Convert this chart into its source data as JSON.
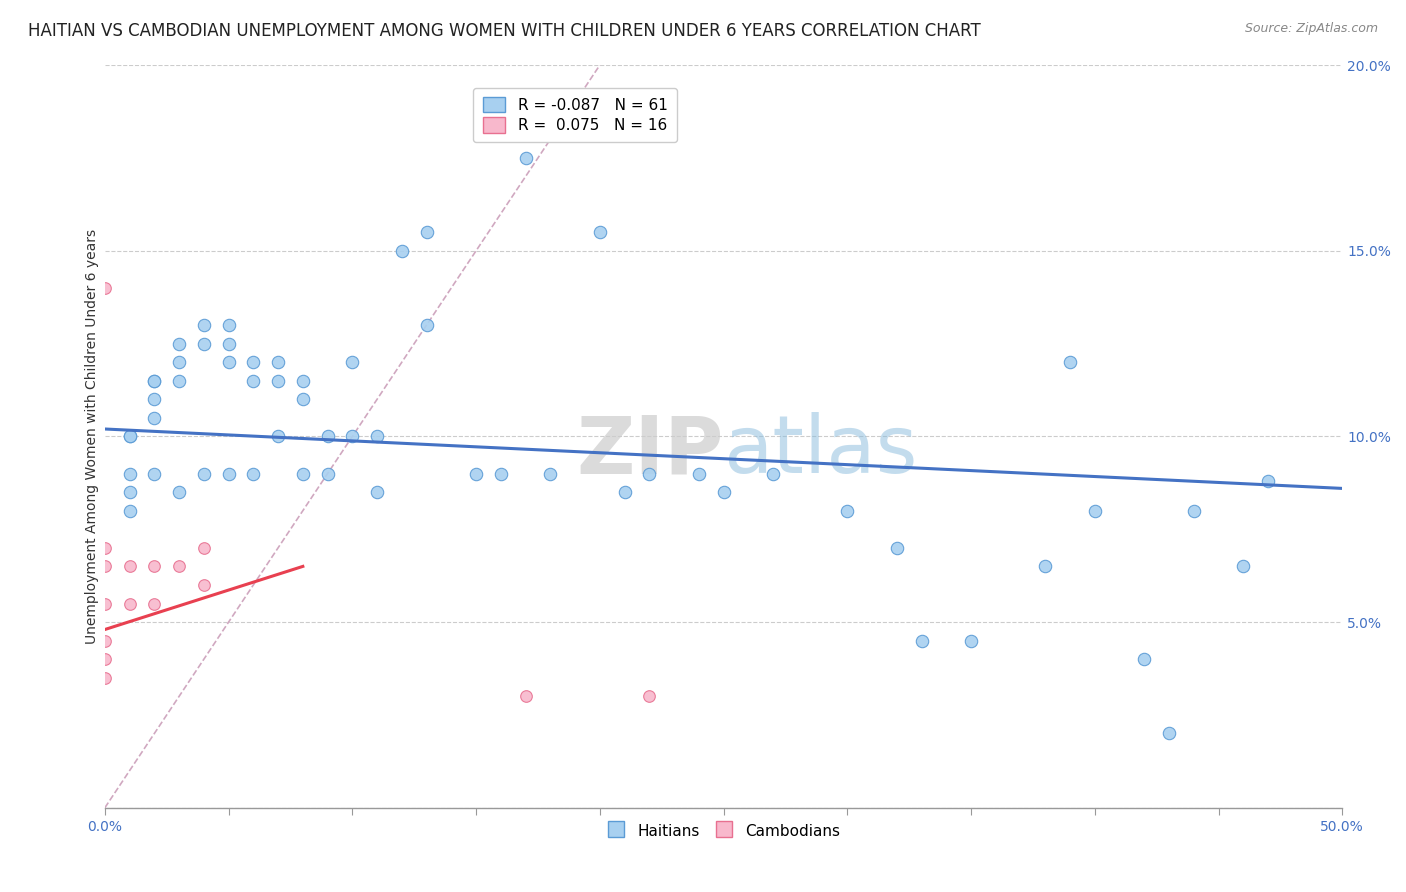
{
  "title": "HAITIAN VS CAMBODIAN UNEMPLOYMENT AMONG WOMEN WITH CHILDREN UNDER 6 YEARS CORRELATION CHART",
  "source": "Source: ZipAtlas.com",
  "ylabel": "Unemployment Among Women with Children Under 6 years",
  "xlim": [
    0,
    0.5
  ],
  "ylim": [
    0,
    0.2
  ],
  "xtick_positions": [
    0.0,
    0.05,
    0.1,
    0.15,
    0.2,
    0.25,
    0.3,
    0.35,
    0.4,
    0.45,
    0.5
  ],
  "ytick_positions": [
    0.0,
    0.05,
    0.1,
    0.15,
    0.2
  ],
  "background_color": "#ffffff",
  "legend_haitian": "Haitians",
  "legend_cambodian": "Cambodians",
  "R_haitian": -0.087,
  "N_haitian": 61,
  "R_cambodian": 0.075,
  "N_cambodian": 16,
  "haitian_color": "#A8D0F0",
  "cambodian_color": "#F8B8CC",
  "haitian_edge_color": "#5B9BD5",
  "cambodian_edge_color": "#E87090",
  "haitian_line_color": "#4472C4",
  "cambodian_line_color": "#E84050",
  "ref_line_color": "#D0A8C0",
  "haitian_x": [
    0.01,
    0.01,
    0.01,
    0.01,
    0.01,
    0.02,
    0.02,
    0.02,
    0.02,
    0.02,
    0.03,
    0.03,
    0.03,
    0.03,
    0.04,
    0.04,
    0.04,
    0.05,
    0.05,
    0.05,
    0.05,
    0.06,
    0.06,
    0.06,
    0.07,
    0.07,
    0.07,
    0.08,
    0.08,
    0.08,
    0.09,
    0.09,
    0.1,
    0.1,
    0.11,
    0.11,
    0.12,
    0.13,
    0.13,
    0.15,
    0.16,
    0.17,
    0.18,
    0.2,
    0.21,
    0.24,
    0.25,
    0.27,
    0.3,
    0.32,
    0.33,
    0.35,
    0.38,
    0.39,
    0.4,
    0.42,
    0.43,
    0.44,
    0.46,
    0.47,
    0.22
  ],
  "haitian_y": [
    0.1,
    0.1,
    0.09,
    0.085,
    0.08,
    0.115,
    0.115,
    0.11,
    0.105,
    0.09,
    0.125,
    0.12,
    0.115,
    0.085,
    0.13,
    0.125,
    0.09,
    0.13,
    0.125,
    0.12,
    0.09,
    0.12,
    0.115,
    0.09,
    0.12,
    0.115,
    0.1,
    0.115,
    0.11,
    0.09,
    0.1,
    0.09,
    0.12,
    0.1,
    0.1,
    0.085,
    0.15,
    0.155,
    0.13,
    0.09,
    0.09,
    0.175,
    0.09,
    0.155,
    0.085,
    0.09,
    0.085,
    0.09,
    0.08,
    0.07,
    0.045,
    0.045,
    0.065,
    0.12,
    0.08,
    0.04,
    0.02,
    0.08,
    0.065,
    0.088,
    0.09
  ],
  "cambodian_x": [
    0.0,
    0.0,
    0.0,
    0.0,
    0.0,
    0.0,
    0.0,
    0.01,
    0.01,
    0.02,
    0.02,
    0.03,
    0.04,
    0.04,
    0.17,
    0.22
  ],
  "cambodian_y": [
    0.14,
    0.07,
    0.065,
    0.055,
    0.045,
    0.04,
    0.035,
    0.065,
    0.055,
    0.065,
    0.055,
    0.065,
    0.07,
    0.06,
    0.03,
    0.03
  ],
  "haitian_trend_x": [
    0.0,
    0.5
  ],
  "haitian_trend_y": [
    0.102,
    0.086
  ],
  "cambodian_trend_x": [
    0.0,
    0.08
  ],
  "cambodian_trend_y": [
    0.048,
    0.065
  ],
  "ref_line_x": [
    0.0,
    0.2
  ],
  "ref_line_y": [
    0.0,
    0.2
  ],
  "title_fontsize": 12,
  "axis_fontsize": 10,
  "tick_fontsize": 10,
  "legend_fontsize": 11,
  "dot_size_haitian": 80,
  "dot_size_cambodian": 70
}
